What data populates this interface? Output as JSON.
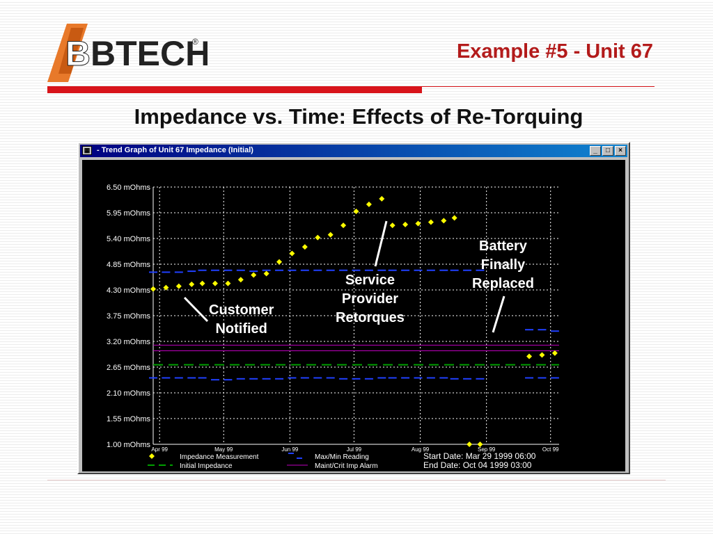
{
  "header": {
    "logo_text": "BTECH",
    "registered_mark": "®",
    "slide_title": "Example #5 - Unit 67",
    "heading": "Impedance vs. Time: Effects of Re-Torquing"
  },
  "window": {
    "title": "- Trend Graph of Unit 67 Impedance (Initial)",
    "minimize_glyph": "_",
    "maximize_glyph": "□",
    "close_glyph": "×"
  },
  "annotations": {
    "customer_notified": [
      "Customer",
      "Notified"
    ],
    "service_provider": [
      "Service",
      "Provider",
      "Retorques"
    ],
    "battery_replaced": [
      "Battery",
      "Finally",
      "Replaced"
    ]
  },
  "info": {
    "start_date": "Start Date: Mar 29 1999  06:00",
    "end_date": "End Date: Oct 04 1999  03:00"
  },
  "colors": {
    "measurement": "#ffff00",
    "maxmin": "#2040ff",
    "initial": "#00a000",
    "alarm": "#c000c0",
    "grid": "#ffffff",
    "background": "#000000"
  },
  "chart_data": {
    "type": "scatter",
    "y_ticks": [
      "6.50 mOhms",
      "5.95 mOhms",
      "5.40 mOhms",
      "4.85 mOhms",
      "4.30 mOhms",
      "3.75 mOhms",
      "3.20 mOhms",
      "2.65 mOhms",
      "2.10 mOhms",
      "1.55 mOhms",
      "1.00 mOhms"
    ],
    "y_tick_values": [
      6.5,
      5.95,
      5.4,
      4.85,
      4.3,
      3.75,
      3.2,
      2.65,
      2.1,
      1.55,
      1.0
    ],
    "ylim": [
      1.0,
      6.5
    ],
    "x_ticks": [
      "Apr 99",
      "May 99",
      "Jun 99",
      "Jul 99",
      "Aug 99",
      "Sep 99",
      "Oct 99"
    ],
    "x_tick_values": [
      3,
      33,
      64,
      94,
      125,
      156,
      186
    ],
    "xlim": [
      0,
      190
    ],
    "grid": true,
    "legend": [
      {
        "label": "Impedance Measurement",
        "key": "measurement"
      },
      {
        "label": "Max/Min Reading",
        "key": "maxmin"
      },
      {
        "label": "Initial Impedance",
        "key": "initial"
      },
      {
        "label": "Maint/Crit Imp Alarm",
        "key": "alarm"
      }
    ],
    "series": [
      {
        "name": "Impedance Measurement",
        "x": [
          0,
          6,
          12,
          18,
          23,
          29,
          35,
          41,
          47,
          53,
          59,
          65,
          71,
          77,
          83,
          89,
          95,
          101,
          107,
          112,
          118,
          124,
          130,
          136,
          141,
          148,
          153,
          176,
          182,
          188
        ],
        "y": [
          4.32,
          4.35,
          4.38,
          4.42,
          4.44,
          4.44,
          4.44,
          4.52,
          4.62,
          4.65,
          4.9,
          5.08,
          5.22,
          5.42,
          5.48,
          5.68,
          5.98,
          6.13,
          6.25,
          5.68,
          5.7,
          5.72,
          5.75,
          5.78,
          5.84,
          1.0,
          1.0,
          2.88,
          2.91,
          2.95
        ]
      },
      {
        "name": "Max/Min Reading",
        "x": [
          0,
          6,
          12,
          18,
          23,
          29,
          35,
          41,
          47,
          53,
          59,
          65,
          71,
          77,
          83,
          89,
          95,
          101,
          107,
          112,
          118,
          124,
          130,
          136,
          141,
          147,
          153,
          176,
          182,
          188
        ],
        "y_max": [
          4.68,
          4.68,
          4.68,
          4.7,
          4.72,
          4.72,
          4.72,
          4.72,
          4.7,
          4.72,
          4.72,
          4.72,
          4.72,
          4.72,
          4.72,
          4.72,
          4.72,
          4.72,
          4.72,
          4.72,
          4.72,
          4.72,
          4.72,
          4.72,
          4.72,
          4.72,
          4.72,
          3.45,
          3.45,
          3.42
        ],
        "y_min": [
          2.42,
          2.42,
          2.42,
          2.42,
          2.42,
          2.38,
          2.38,
          2.4,
          2.4,
          2.4,
          2.4,
          2.42,
          2.42,
          2.42,
          2.42,
          2.4,
          2.4,
          2.4,
          2.42,
          2.42,
          2.42,
          2.42,
          2.42,
          2.42,
          2.4,
          2.4,
          2.4,
          2.42,
          2.42,
          2.42
        ]
      },
      {
        "name": "Initial Impedance",
        "y": 2.7
      },
      {
        "name": "Maint/Crit Imp Alarm",
        "y": [
          3.12,
          3.0
        ]
      }
    ]
  }
}
